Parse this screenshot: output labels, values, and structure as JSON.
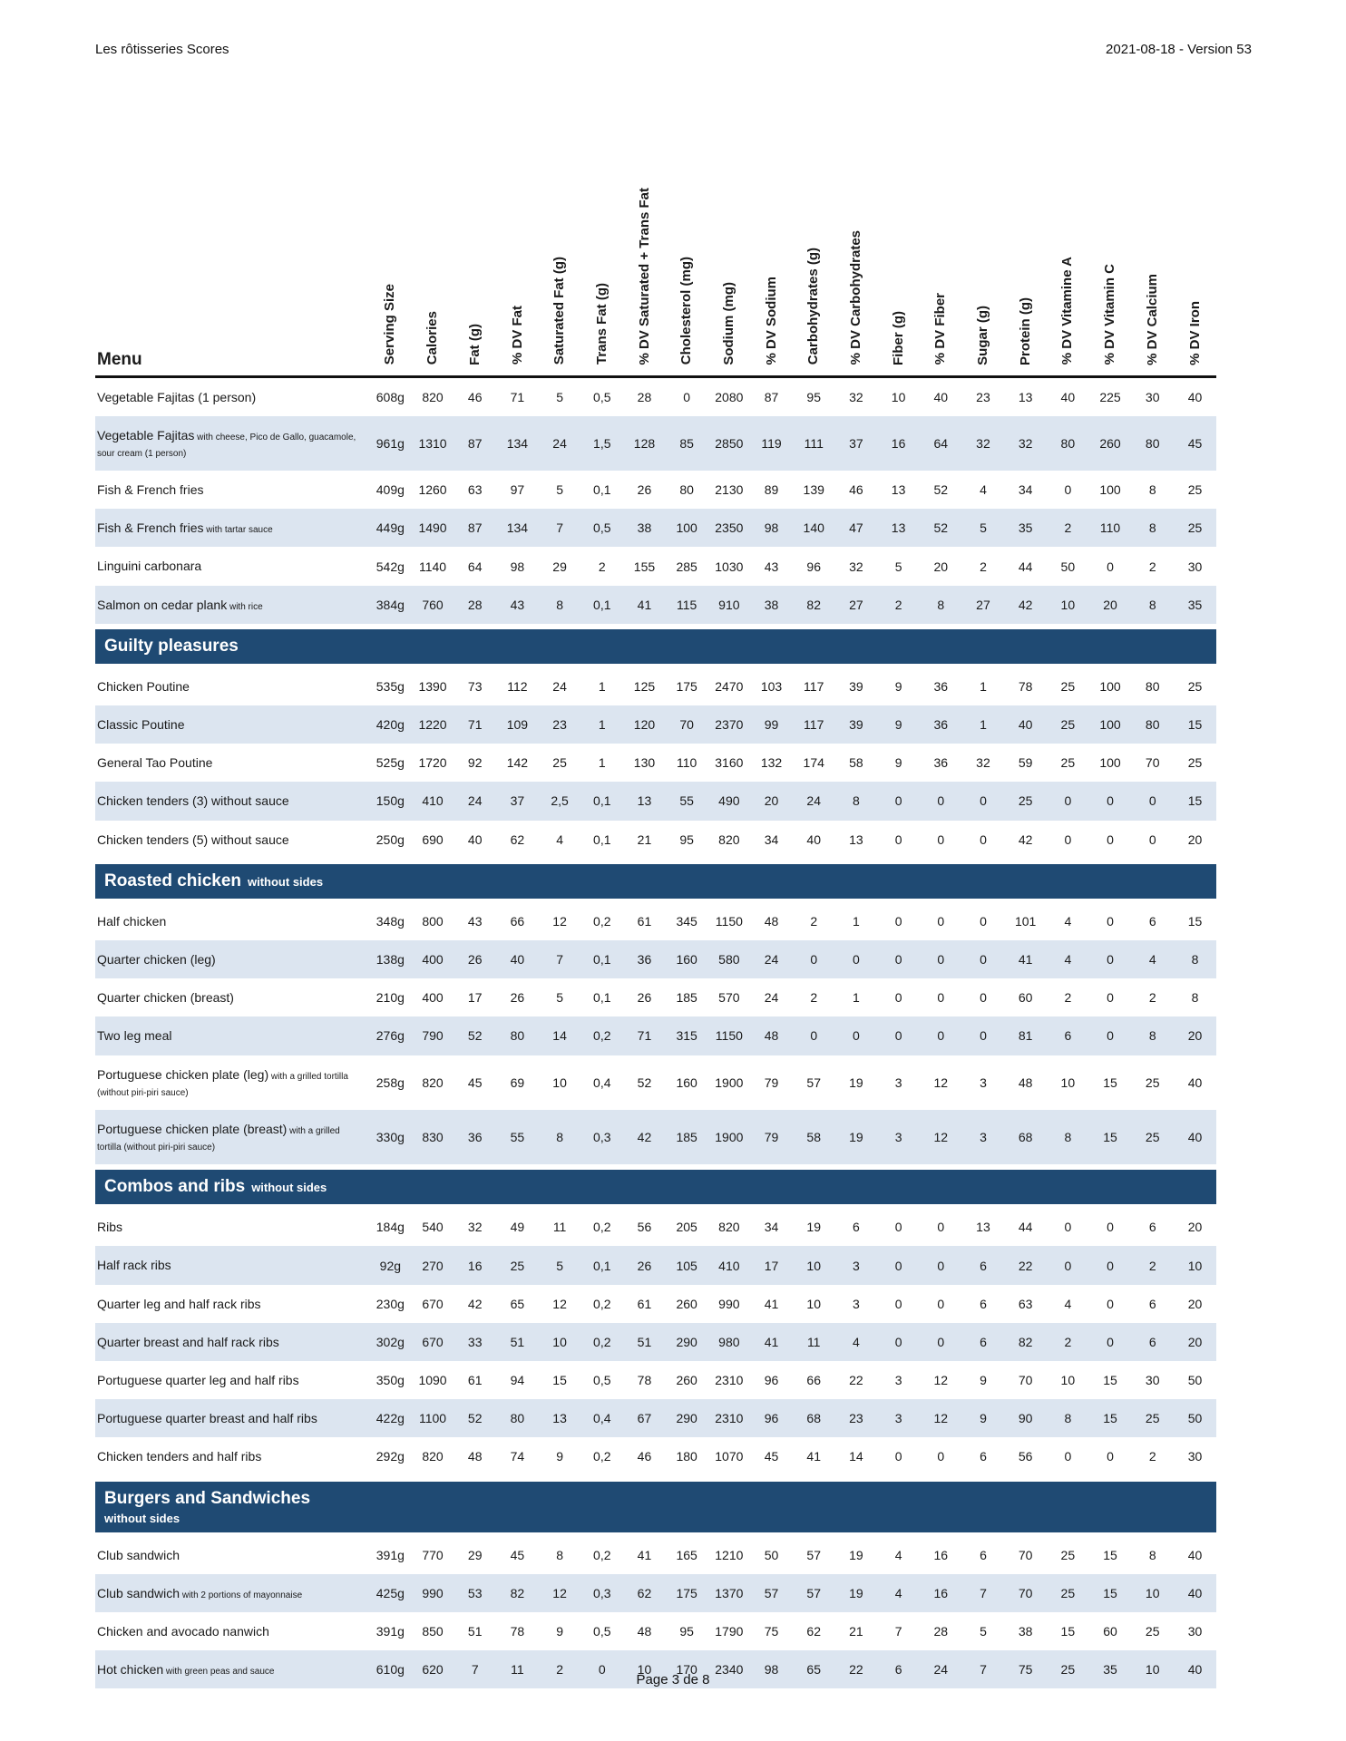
{
  "header": {
    "title": "Les rôtisseries Scores",
    "version": "2021-08-18 - Version 53"
  },
  "footer": {
    "text": "Page 3 de 8"
  },
  "colors": {
    "section_bg": "#1f4a73",
    "stripe_bg": "#dce5f0",
    "header_rule": "#111111"
  },
  "table": {
    "menu_label": "Menu",
    "columns": [
      "Serving Size",
      "Calories",
      "Fat (g)",
      "% DV Fat",
      "Saturated Fat (g)",
      "Trans Fat (g)",
      "% DV Saturated + Trans Fat",
      "Cholesterol (mg)",
      "Sodium (mg)",
      "% DV Sodium",
      "Carbohydrates (g)",
      "% DV Carbohydrates",
      "Fiber (g)",
      "% DV Fiber",
      "Sugar (g)",
      "Protein (g)",
      "% DV Vitamine A",
      "% DV Vitamin C",
      "% DV Calcium",
      "% DV Iron"
    ],
    "sections": [
      {
        "title": "",
        "subtitle": "",
        "subtitle_block": false,
        "rows": [
          {
            "name": "Vegetable Fajitas (1 person)",
            "note": "",
            "values": [
              "608g",
              "820",
              "46",
              "71",
              "5",
              "0,5",
              "28",
              "0",
              "2080",
              "87",
              "95",
              "32",
              "10",
              "40",
              "23",
              "13",
              "40",
              "225",
              "30",
              "40"
            ]
          },
          {
            "name": "Vegetable Fajitas",
            "note": "with cheese, Pico de Gallo, guacamole, sour cream (1 person)",
            "values": [
              "961g",
              "1310",
              "87",
              "134",
              "24",
              "1,5",
              "128",
              "85",
              "2850",
              "119",
              "111",
              "37",
              "16",
              "64",
              "32",
              "32",
              "80",
              "260",
              "80",
              "45"
            ]
          },
          {
            "name": "Fish & French fries",
            "note": "",
            "values": [
              "409g",
              "1260",
              "63",
              "97",
              "5",
              "0,1",
              "26",
              "80",
              "2130",
              "89",
              "139",
              "46",
              "13",
              "52",
              "4",
              "34",
              "0",
              "100",
              "8",
              "25"
            ]
          },
          {
            "name": "Fish & French fries",
            "note": "with tartar sauce",
            "values": [
              "449g",
              "1490",
              "87",
              "134",
              "7",
              "0,5",
              "38",
              "100",
              "2350",
              "98",
              "140",
              "47",
              "13",
              "52",
              "5",
              "35",
              "2",
              "110",
              "8",
              "25"
            ]
          },
          {
            "name": "Linguini carbonara",
            "note": "",
            "values": [
              "542g",
              "1140",
              "64",
              "98",
              "29",
              "2",
              "155",
              "285",
              "1030",
              "43",
              "96",
              "32",
              "5",
              "20",
              "2",
              "44",
              "50",
              "0",
              "2",
              "30"
            ]
          },
          {
            "name": "Salmon on cedar plank",
            "note": "with rice",
            "values": [
              "384g",
              "760",
              "28",
              "43",
              "8",
              "0,1",
              "41",
              "115",
              "910",
              "38",
              "82",
              "27",
              "2",
              "8",
              "27",
              "42",
              "10",
              "20",
              "8",
              "35"
            ]
          }
        ]
      },
      {
        "title": "Guilty pleasures",
        "subtitle": "",
        "subtitle_block": false,
        "rows": [
          {
            "name": "Chicken Poutine",
            "note": "",
            "values": [
              "535g",
              "1390",
              "73",
              "112",
              "24",
              "1",
              "125",
              "175",
              "2470",
              "103",
              "117",
              "39",
              "9",
              "36",
              "1",
              "78",
              "25",
              "100",
              "80",
              "25"
            ]
          },
          {
            "name": "Classic Poutine",
            "note": "",
            "values": [
              "420g",
              "1220",
              "71",
              "109",
              "23",
              "1",
              "120",
              "70",
              "2370",
              "99",
              "117",
              "39",
              "9",
              "36",
              "1",
              "40",
              "25",
              "100",
              "80",
              "15"
            ]
          },
          {
            "name": "General Tao Poutine",
            "note": "",
            "values": [
              "525g",
              "1720",
              "92",
              "142",
              "25",
              "1",
              "130",
              "110",
              "3160",
              "132",
              "174",
              "58",
              "9",
              "36",
              "32",
              "59",
              "25",
              "100",
              "70",
              "25"
            ]
          },
          {
            "name": "Chicken tenders (3) without sauce",
            "note": "",
            "values": [
              "150g",
              "410",
              "24",
              "37",
              "2,5",
              "0,1",
              "13",
              "55",
              "490",
              "20",
              "24",
              "8",
              "0",
              "0",
              "0",
              "25",
              "0",
              "0",
              "0",
              "15"
            ]
          },
          {
            "name": "Chicken tenders (5) without sauce",
            "note": "",
            "values": [
              "250g",
              "690",
              "40",
              "62",
              "4",
              "0,1",
              "21",
              "95",
              "820",
              "34",
              "40",
              "13",
              "0",
              "0",
              "0",
              "42",
              "0",
              "0",
              "0",
              "20"
            ]
          }
        ]
      },
      {
        "title": "Roasted chicken",
        "subtitle": "without sides",
        "subtitle_block": false,
        "rows": [
          {
            "name": "Half chicken",
            "note": "",
            "values": [
              "348g",
              "800",
              "43",
              "66",
              "12",
              "0,2",
              "61",
              "345",
              "1150",
              "48",
              "2",
              "1",
              "0",
              "0",
              "0",
              "101",
              "4",
              "0",
              "6",
              "15"
            ]
          },
          {
            "name": "Quarter chicken (leg)",
            "note": "",
            "values": [
              "138g",
              "400",
              "26",
              "40",
              "7",
              "0,1",
              "36",
              "160",
              "580",
              "24",
              "0",
              "0",
              "0",
              "0",
              "0",
              "41",
              "4",
              "0",
              "4",
              "8"
            ]
          },
          {
            "name": "Quarter chicken (breast)",
            "note": "",
            "values": [
              "210g",
              "400",
              "17",
              "26",
              "5",
              "0,1",
              "26",
              "185",
              "570",
              "24",
              "2",
              "1",
              "0",
              "0",
              "0",
              "60",
              "2",
              "0",
              "2",
              "8"
            ]
          },
          {
            "name": "Two leg meal",
            "note": "",
            "values": [
              "276g",
              "790",
              "52",
              "80",
              "14",
              "0,2",
              "71",
              "315",
              "1150",
              "48",
              "0",
              "0",
              "0",
              "0",
              "0",
              "81",
              "6",
              "0",
              "8",
              "20"
            ]
          },
          {
            "name": "Portuguese chicken plate (leg)",
            "note": "with a grilled tortilla (without piri-piri sauce)",
            "values": [
              "258g",
              "820",
              "45",
              "69",
              "10",
              "0,4",
              "52",
              "160",
              "1900",
              "79",
              "57",
              "19",
              "3",
              "12",
              "3",
              "48",
              "10",
              "15",
              "25",
              "40"
            ]
          },
          {
            "name": "Portuguese chicken plate (breast)",
            "note": "with a grilled tortilla (without piri-piri sauce)",
            "values": [
              "330g",
              "830",
              "36",
              "55",
              "8",
              "0,3",
              "42",
              "185",
              "1900",
              "79",
              "58",
              "19",
              "3",
              "12",
              "3",
              "68",
              "8",
              "15",
              "25",
              "40"
            ]
          }
        ]
      },
      {
        "title": "Combos and ribs",
        "subtitle": "without sides",
        "subtitle_block": false,
        "rows": [
          {
            "name": "Ribs",
            "note": "",
            "values": [
              "184g",
              "540",
              "32",
              "49",
              "11",
              "0,2",
              "56",
              "205",
              "820",
              "34",
              "19",
              "6",
              "0",
              "0",
              "13",
              "44",
              "0",
              "0",
              "6",
              "20"
            ]
          },
          {
            "name": "Half rack ribs",
            "note": "",
            "values": [
              "92g",
              "270",
              "16",
              "25",
              "5",
              "0,1",
              "26",
              "105",
              "410",
              "17",
              "10",
              "3",
              "0",
              "0",
              "6",
              "22",
              "0",
              "0",
              "2",
              "10"
            ]
          },
          {
            "name": "Quarter leg and half rack ribs",
            "note": "",
            "values": [
              "230g",
              "670",
              "42",
              "65",
              "12",
              "0,2",
              "61",
              "260",
              "990",
              "41",
              "10",
              "3",
              "0",
              "0",
              "6",
              "63",
              "4",
              "0",
              "6",
              "20"
            ]
          },
          {
            "name": "Quarter breast and half rack ribs",
            "note": "",
            "values": [
              "302g",
              "670",
              "33",
              "51",
              "10",
              "0,2",
              "51",
              "290",
              "980",
              "41",
              "11",
              "4",
              "0",
              "0",
              "6",
              "82",
              "2",
              "0",
              "6",
              "20"
            ]
          },
          {
            "name": "Portuguese quarter leg and half ribs",
            "note": "",
            "values": [
              "350g",
              "1090",
              "61",
              "94",
              "15",
              "0,5",
              "78",
              "260",
              "2310",
              "96",
              "66",
              "22",
              "3",
              "12",
              "9",
              "70",
              "10",
              "15",
              "30",
              "50"
            ]
          },
          {
            "name": "Portuguese quarter breast and half ribs",
            "note": "",
            "values": [
              "422g",
              "1100",
              "52",
              "80",
              "13",
              "0,4",
              "67",
              "290",
              "2310",
              "96",
              "68",
              "23",
              "3",
              "12",
              "9",
              "90",
              "8",
              "15",
              "25",
              "50"
            ]
          },
          {
            "name": "Chicken tenders and half ribs",
            "note": "",
            "values": [
              "292g",
              "820",
              "48",
              "74",
              "9",
              "0,2",
              "46",
              "180",
              "1070",
              "45",
              "41",
              "14",
              "0",
              "0",
              "6",
              "56",
              "0",
              "0",
              "2",
              "30"
            ]
          }
        ]
      },
      {
        "title": "Burgers and Sandwiches",
        "subtitle": "without sides",
        "subtitle_block": true,
        "rows": [
          {
            "name": "Club sandwich",
            "note": "",
            "values": [
              "391g",
              "770",
              "29",
              "45",
              "8",
              "0,2",
              "41",
              "165",
              "1210",
              "50",
              "57",
              "19",
              "4",
              "16",
              "6",
              "70",
              "25",
              "15",
              "8",
              "40"
            ]
          },
          {
            "name": "Club sandwich",
            "note": "with 2 portions of mayonnaise",
            "values": [
              "425g",
              "990",
              "53",
              "82",
              "12",
              "0,3",
              "62",
              "175",
              "1370",
              "57",
              "57",
              "19",
              "4",
              "16",
              "7",
              "70",
              "25",
              "15",
              "10",
              "40"
            ]
          },
          {
            "name": "Chicken and avocado nanwich",
            "note": "",
            "values": [
              "391g",
              "850",
              "51",
              "78",
              "9",
              "0,5",
              "48",
              "95",
              "1790",
              "75",
              "62",
              "21",
              "7",
              "28",
              "5",
              "38",
              "15",
              "60",
              "25",
              "30"
            ]
          },
          {
            "name": "Hot chicken",
            "note": "with green peas and sauce",
            "values": [
              "610g",
              "620",
              "7",
              "11",
              "2",
              "0",
              "10",
              "170",
              "2340",
              "98",
              "65",
              "22",
              "6",
              "24",
              "7",
              "75",
              "25",
              "35",
              "10",
              "40"
            ]
          }
        ]
      }
    ]
  }
}
